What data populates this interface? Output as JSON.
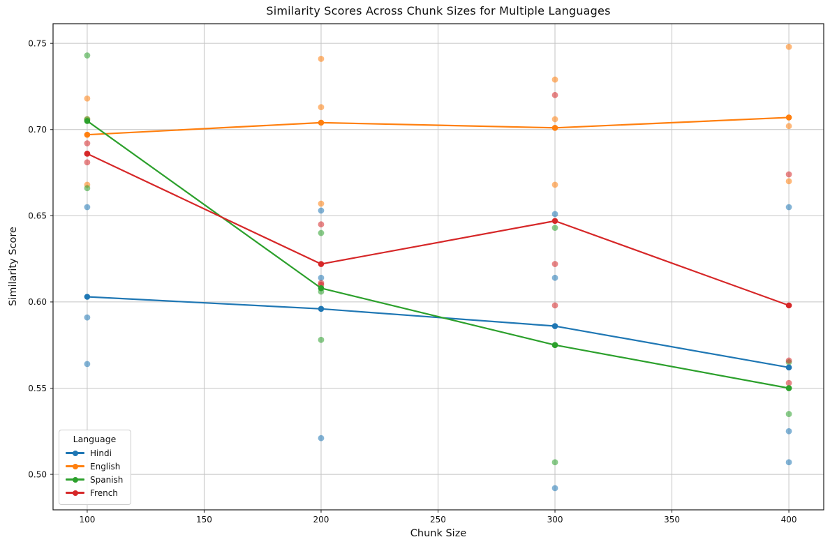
{
  "chart_data": {
    "type": "line",
    "subtype": "seaborn-lineplot-with-scatter",
    "title": "Similarity Scores Across Chunk Sizes for Multiple Languages",
    "xlabel": "Chunk Size",
    "ylabel": "Similarity Score",
    "grid": true,
    "legend": {
      "title": "Language",
      "position": "lower left"
    },
    "xlim": [
      85.4,
      414.9
    ],
    "ylim": [
      0.4794,
      0.7614
    ],
    "xticks": {
      "values": [
        100,
        150,
        200,
        250,
        300,
        350,
        400
      ],
      "labels": [
        "100",
        "150",
        "200",
        "250",
        "300",
        "350",
        "400"
      ]
    },
    "yticks": {
      "values": [
        0.5,
        0.55,
        0.6,
        0.65,
        0.7,
        0.75
      ],
      "labels": [
        "0.50",
        "0.55",
        "0.60",
        "0.65",
        "0.70",
        "0.75"
      ]
    },
    "x": [
      100,
      200,
      300,
      400
    ],
    "series": [
      {
        "name": "Hindi",
        "color": "#1f77b4",
        "means": [
          0.603,
          0.596,
          0.586,
          0.562
        ],
        "scatter": [
          [
            0.655,
            0.591,
            0.564
          ],
          [
            0.653,
            0.614,
            0.521
          ],
          [
            0.651,
            0.614,
            0.492
          ],
          [
            0.655,
            0.525,
            0.507
          ]
        ]
      },
      {
        "name": "English",
        "color": "#ff7f0e",
        "means": [
          0.697,
          0.704,
          0.701,
          0.707
        ],
        "scatter": [
          [
            0.718,
            0.706,
            0.668
          ],
          [
            0.741,
            0.713,
            0.657
          ],
          [
            0.729,
            0.706,
            0.668
          ],
          [
            0.748,
            0.702,
            0.67
          ]
        ]
      },
      {
        "name": "Spanish",
        "color": "#2ca02c",
        "means": [
          0.705,
          0.608,
          0.575,
          0.55
        ],
        "scatter": [
          [
            0.743,
            0.706,
            0.666
          ],
          [
            0.64,
            0.606,
            0.578
          ],
          [
            0.643,
            0.575,
            0.507
          ],
          [
            0.565,
            0.55,
            0.535
          ]
        ]
      },
      {
        "name": "French",
        "color": "#d62728",
        "means": [
          0.686,
          0.622,
          0.647,
          0.598
        ],
        "scatter": [
          [
            0.692,
            0.686,
            0.681
          ],
          [
            0.645,
            0.611,
            0.61
          ],
          [
            0.72,
            0.622,
            0.598
          ],
          [
            0.674,
            0.566,
            0.553
          ]
        ]
      }
    ],
    "style": {
      "background": "#ffffff",
      "grid_color": "#c4c4c4",
      "spine_color": "#1a1a1a",
      "tick_color": "#1a1a1a",
      "scatter_alpha": 0.55,
      "line_width": 2.2,
      "marker_radius": 4.3,
      "scatter_radius": 4.4
    }
  }
}
